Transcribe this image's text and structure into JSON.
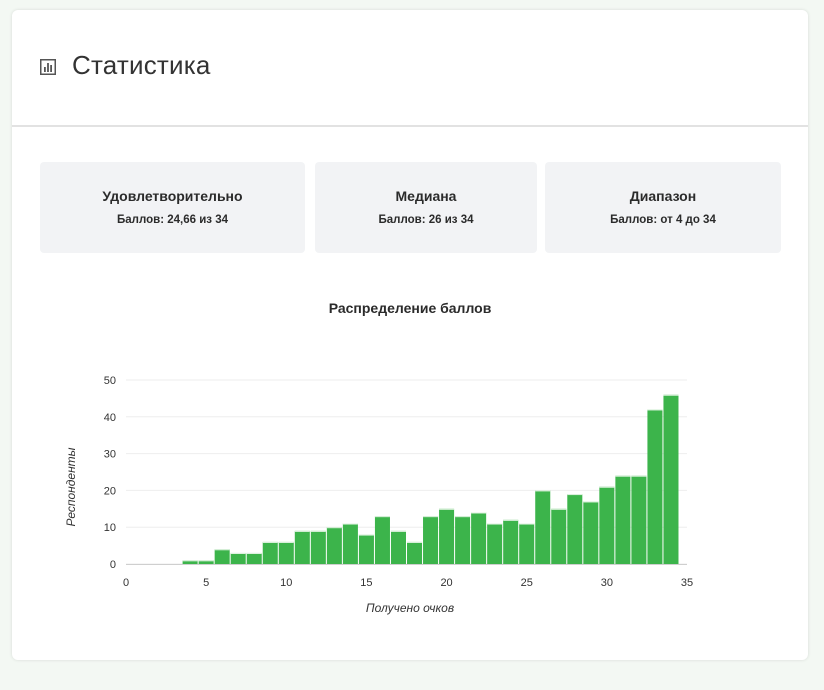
{
  "header": {
    "title": "Статистика",
    "icon": "bar-chart-icon"
  },
  "stats": [
    {
      "title": "Удовлетворительно",
      "value": "Баллов: 24,66 из 34"
    },
    {
      "title": "Медиана",
      "value": "Баллов: 26 из 34"
    },
    {
      "title": "Диапазон",
      "value": "Баллов: от 4 до 34"
    }
  ],
  "colors": {
    "bar": "#3cb44b",
    "bar_top": "#e6f5e6",
    "grid": "#eeeeee",
    "stat_bg": "#f2f3f5"
  },
  "chart_data": {
    "type": "bar",
    "title": "Распределение баллов",
    "xlabel": "Получено очков",
    "ylabel": "Респонденты",
    "xlim": [
      0,
      35
    ],
    "ylim": [
      0,
      50
    ],
    "xticks": [
      0,
      5,
      10,
      15,
      20,
      25,
      30,
      35
    ],
    "yticks": [
      0,
      10,
      20,
      30,
      40,
      50
    ],
    "grid": true,
    "categories": [
      4,
      5,
      6,
      7,
      8,
      9,
      10,
      11,
      12,
      13,
      14,
      15,
      16,
      17,
      18,
      19,
      20,
      21,
      22,
      23,
      24,
      25,
      26,
      27,
      28,
      29,
      30,
      31,
      32,
      33,
      34
    ],
    "values": [
      1,
      1,
      4,
      3,
      3,
      6,
      6,
      9,
      9,
      10,
      11,
      8,
      13,
      9,
      6,
      13,
      15,
      13,
      14,
      11,
      12,
      11,
      20,
      15,
      19,
      17,
      21,
      24,
      24,
      42,
      46
    ]
  }
}
